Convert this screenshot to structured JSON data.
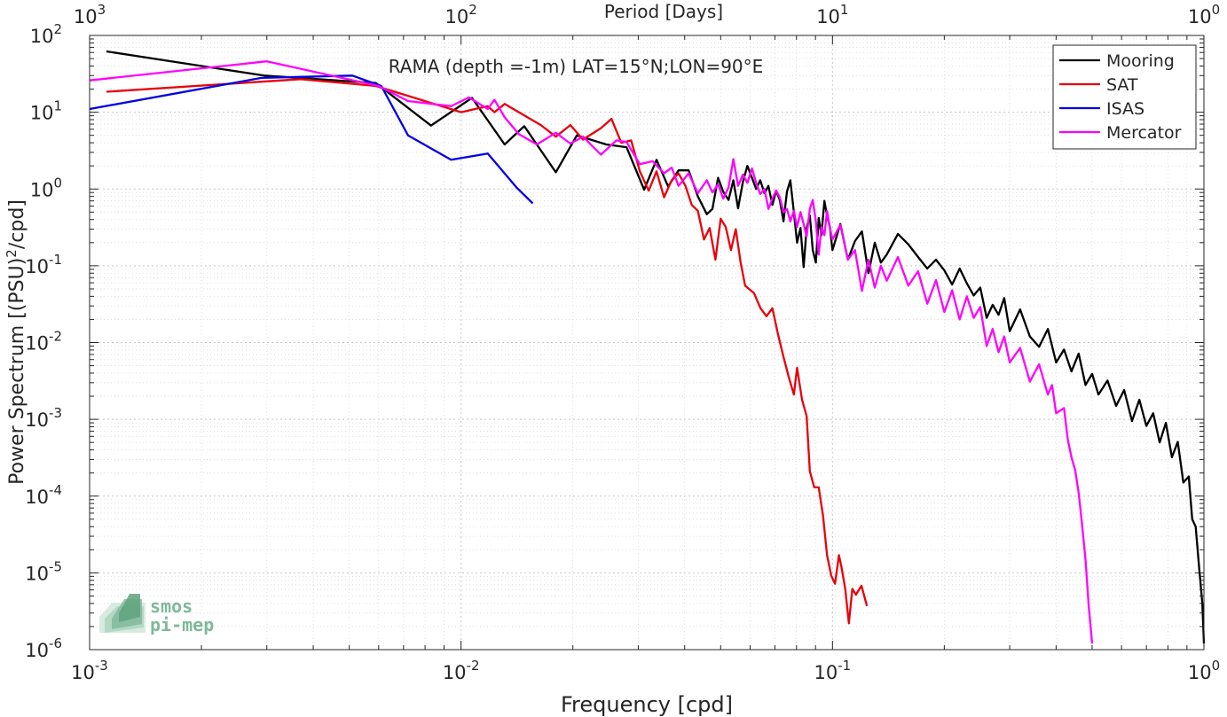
{
  "chart_data": {
    "type": "line",
    "title": "RAMA (depth =-1m) LAT=15°N;LON=90°E",
    "xlabel": "Frequency [cpd]",
    "ylabel_main": "Power Spectrum [(PSU)",
    "ylabel_sup": "2",
    "ylabel_end": "/cpd]",
    "top_axis_label": "Period [Days]",
    "x_scale": "log",
    "y_scale": "log",
    "xlim": [
      0.001,
      1
    ],
    "ylim": [
      1e-06,
      100
    ],
    "grid": true,
    "minor_grid": true,
    "legend_position": "top-right",
    "x_ticks": [
      {
        "base": "10",
        "exp": "-3",
        "value": 0.001
      },
      {
        "base": "10",
        "exp": "-2",
        "value": 0.01
      },
      {
        "base": "10",
        "exp": "-1",
        "value": 0.1
      },
      {
        "base": "10",
        "exp": "0",
        "value": 1
      }
    ],
    "top_ticks": [
      {
        "base": "10",
        "exp": "3",
        "value": 0.001
      },
      {
        "base": "10",
        "exp": "2",
        "value": 0.01
      },
      {
        "base": "10",
        "exp": "1",
        "value": 0.1
      },
      {
        "base": "10",
        "exp": "0",
        "value": 1
      }
    ],
    "y_ticks": [
      {
        "base": "10",
        "exp": "2",
        "value": 100
      },
      {
        "base": "10",
        "exp": "1",
        "value": 10
      },
      {
        "base": "10",
        "exp": "0",
        "value": 1
      },
      {
        "base": "10",
        "exp": "-1",
        "value": 0.1
      },
      {
        "base": "10",
        "exp": "-2",
        "value": 0.01
      },
      {
        "base": "10",
        "exp": "-3",
        "value": 0.001
      },
      {
        "base": "10",
        "exp": "-4",
        "value": 0.0001
      },
      {
        "base": "10",
        "exp": "-5",
        "value": 1e-05
      },
      {
        "base": "10",
        "exp": "-6",
        "value": 1e-06
      }
    ],
    "series": [
      {
        "name": "Mooring",
        "color": "#000000",
        "points": [
          [
            0.00111,
            62
          ],
          [
            0.00295,
            30
          ],
          [
            0.0059,
            24
          ],
          [
            0.0083,
            6.7
          ],
          [
            0.0107,
            15.4
          ],
          [
            0.0131,
            3.8
          ],
          [
            0.0148,
            6.6
          ],
          [
            0.018,
            1.65
          ],
          [
            0.0205,
            5.0
          ],
          [
            0.0246,
            3.8
          ],
          [
            0.0279,
            3.5
          ],
          [
            0.0311,
            0.98
          ],
          [
            0.0336,
            2.4
          ],
          [
            0.0361,
            1.08
          ],
          [
            0.0385,
            1.75
          ],
          [
            0.041,
            1.75
          ],
          [
            0.0434,
            0.8
          ],
          [
            0.0459,
            0.47
          ],
          [
            0.0475,
            0.55
          ],
          [
            0.0492,
            1.4
          ],
          [
            0.0508,
            0.92
          ],
          [
            0.0525,
            0.72
          ],
          [
            0.0541,
            1.3
          ],
          [
            0.0557,
            0.56
          ],
          [
            0.0574,
            1.25
          ],
          [
            0.059,
            2.0
          ],
          [
            0.0607,
            1.4
          ],
          [
            0.0623,
            1.0
          ],
          [
            0.0639,
            1.3
          ],
          [
            0.0656,
            0.88
          ],
          [
            0.0672,
            1.1
          ],
          [
            0.0689,
            0.62
          ],
          [
            0.0705,
            0.95
          ],
          [
            0.0721,
            0.72
          ],
          [
            0.0738,
            0.38
          ],
          [
            0.0754,
            0.92
          ],
          [
            0.077,
            1.3
          ],
          [
            0.0787,
            0.5
          ],
          [
            0.0803,
            0.2
          ],
          [
            0.082,
            0.31
          ],
          [
            0.0836,
            0.096
          ],
          [
            0.0852,
            0.31
          ],
          [
            0.0869,
            0.45
          ],
          [
            0.0885,
            0.16
          ],
          [
            0.0902,
            0.11
          ],
          [
            0.0918,
            0.42
          ],
          [
            0.0934,
            0.25
          ],
          [
            0.0951,
            0.7
          ],
          [
            0.0967,
            0.45
          ],
          [
            0.0984,
            0.32
          ],
          [
            0.1,
            0.16
          ],
          [
            0.105,
            0.35
          ],
          [
            0.11,
            0.12
          ],
          [
            0.115,
            0.21
          ],
          [
            0.12,
            0.28
          ],
          [
            0.125,
            0.08
          ],
          [
            0.13,
            0.2
          ],
          [
            0.135,
            0.11
          ],
          [
            0.14,
            0.14
          ],
          [
            0.15,
            0.26
          ],
          [
            0.16,
            0.19
          ],
          [
            0.17,
            0.13
          ],
          [
            0.18,
            0.092
          ],
          [
            0.19,
            0.12
          ],
          [
            0.2,
            0.087
          ],
          [
            0.21,
            0.057
          ],
          [
            0.22,
            0.092
          ],
          [
            0.23,
            0.059
          ],
          [
            0.24,
            0.041
          ],
          [
            0.25,
            0.052
          ],
          [
            0.26,
            0.021
          ],
          [
            0.27,
            0.031
          ],
          [
            0.28,
            0.023
          ],
          [
            0.29,
            0.038
          ],
          [
            0.3,
            0.014
          ],
          [
            0.32,
            0.027
          ],
          [
            0.34,
            0.012
          ],
          [
            0.36,
            0.0088
          ],
          [
            0.38,
            0.015
          ],
          [
            0.4,
            0.0055
          ],
          [
            0.42,
            0.0081
          ],
          [
            0.44,
            0.0042
          ],
          [
            0.46,
            0.0072
          ],
          [
            0.48,
            0.0028
          ],
          [
            0.5,
            0.0039
          ],
          [
            0.52,
            0.0021
          ],
          [
            0.55,
            0.0032
          ],
          [
            0.58,
            0.0015
          ],
          [
            0.61,
            0.0024
          ],
          [
            0.64,
            0.00095
          ],
          [
            0.67,
            0.0018
          ],
          [
            0.7,
            0.00082
          ],
          [
            0.73,
            0.0012
          ],
          [
            0.76,
            0.0005
          ],
          [
            0.79,
            0.0009
          ],
          [
            0.82,
            0.00032
          ],
          [
            0.85,
            0.00051
          ],
          [
            0.88,
            0.00015
          ],
          [
            0.91,
            0.00018
          ],
          [
            0.93,
            5e-05
          ],
          [
            0.95,
            4e-05
          ],
          [
            0.97,
            1.2e-05
          ],
          [
            0.99,
            4e-06
          ],
          [
            1.0,
            1.2e-06
          ]
        ]
      },
      {
        "name": "SAT",
        "color": "#e8000b",
        "points": [
          [
            0.00111,
            18.5
          ],
          [
            0.0037,
            27
          ],
          [
            0.0059,
            22
          ],
          [
            0.01,
            10
          ],
          [
            0.0118,
            12
          ],
          [
            0.0123,
            10
          ],
          [
            0.0131,
            12.8
          ],
          [
            0.0164,
            6.8
          ],
          [
            0.018,
            4.8
          ],
          [
            0.0197,
            6.8
          ],
          [
            0.0213,
            4.4
          ],
          [
            0.0238,
            6.2
          ],
          [
            0.0254,
            8.2
          ],
          [
            0.027,
            4.0
          ],
          [
            0.0287,
            4.3
          ],
          [
            0.0303,
            1.7
          ],
          [
            0.032,
            0.95
          ],
          [
            0.0336,
            1.7
          ],
          [
            0.0352,
            0.78
          ],
          [
            0.0369,
            1.3
          ],
          [
            0.0385,
            1.6
          ],
          [
            0.0402,
            1.1
          ],
          [
            0.0418,
            0.62
          ],
          [
            0.0434,
            0.52
          ],
          [
            0.0451,
            0.22
          ],
          [
            0.0467,
            0.31
          ],
          [
            0.0484,
            0.12
          ],
          [
            0.05,
            0.41
          ],
          [
            0.0516,
            0.32
          ],
          [
            0.0533,
            0.16
          ],
          [
            0.0549,
            0.3
          ],
          [
            0.0566,
            0.11
          ],
          [
            0.0582,
            0.055
          ],
          [
            0.0615,
            0.044
          ],
          [
            0.064,
            0.028
          ],
          [
            0.0664,
            0.022
          ],
          [
            0.0689,
            0.028
          ],
          [
            0.0713,
            0.013
          ],
          [
            0.0738,
            0.0065
          ],
          [
            0.0762,
            0.0036
          ],
          [
            0.0787,
            0.0021
          ],
          [
            0.0803,
            0.0047
          ],
          [
            0.0828,
            0.0018
          ],
          [
            0.0852,
            0.0011
          ],
          [
            0.0869,
            0.00021
          ],
          [
            0.0893,
            0.00013
          ],
          [
            0.0918,
            0.00013
          ],
          [
            0.0943,
            5.5e-05
          ],
          [
            0.0967,
            1.7e-05
          ],
          [
            0.0992,
            9.2e-06
          ],
          [
            0.1016,
            7.2e-06
          ],
          [
            0.1041,
            1.7e-05
          ],
          [
            0.1057,
            1.2e-05
          ],
          [
            0.1082,
            6.2e-06
          ],
          [
            0.1107,
            2.2e-06
          ],
          [
            0.1131,
            6.2e-06
          ],
          [
            0.1156,
            5.2e-06
          ],
          [
            0.1197,
            6.8e-06
          ],
          [
            0.1238,
            3.7e-06
          ]
        ]
      },
      {
        "name": "ISAS",
        "color": "#0000e6",
        "points": [
          [
            0.001,
            11
          ],
          [
            0.0029,
            28
          ],
          [
            0.0051,
            30
          ],
          [
            0.0061,
            22
          ],
          [
            0.0072,
            5.0
          ],
          [
            0.0094,
            2.4
          ],
          [
            0.0118,
            2.9
          ],
          [
            0.0141,
            1.05
          ],
          [
            0.0156,
            0.65
          ]
        ]
      },
      {
        "name": "Mercator",
        "color": "#ff00ff",
        "points": [
          [
            0.001,
            26
          ],
          [
            0.003,
            46
          ],
          [
            0.006,
            22
          ],
          [
            0.0072,
            14
          ],
          [
            0.0094,
            12
          ],
          [
            0.0105,
            15.6
          ],
          [
            0.0118,
            11
          ],
          [
            0.0123,
            14.5
          ],
          [
            0.0131,
            8.6
          ],
          [
            0.0143,
            5.2
          ],
          [
            0.016,
            3.8
          ],
          [
            0.018,
            5.4
          ],
          [
            0.0197,
            3.9
          ],
          [
            0.0213,
            4.8
          ],
          [
            0.0238,
            2.8
          ],
          [
            0.0262,
            4.3
          ],
          [
            0.0279,
            4.1
          ],
          [
            0.0303,
            2.1
          ],
          [
            0.0328,
            2.3
          ],
          [
            0.0352,
            1.6
          ],
          [
            0.0369,
            1.9
          ],
          [
            0.0385,
            1.1
          ],
          [
            0.041,
            1.6
          ],
          [
            0.0434,
            0.88
          ],
          [
            0.0459,
            1.3
          ],
          [
            0.0475,
            0.9
          ],
          [
            0.0492,
            1.15
          ],
          [
            0.0508,
            0.75
          ],
          [
            0.0525,
            1.05
          ],
          [
            0.0541,
            2.45
          ],
          [
            0.0557,
            1.1
          ],
          [
            0.0574,
            1.55
          ],
          [
            0.059,
            1.2
          ],
          [
            0.0607,
            1.85
          ],
          [
            0.0623,
            1.2
          ],
          [
            0.0639,
            0.86
          ],
          [
            0.0656,
            1.0
          ],
          [
            0.0672,
            0.55
          ],
          [
            0.0689,
            0.75
          ],
          [
            0.0705,
            0.96
          ],
          [
            0.0721,
            0.78
          ],
          [
            0.0738,
            0.5
          ],
          [
            0.0754,
            0.55
          ],
          [
            0.077,
            0.38
          ],
          [
            0.0787,
            0.52
          ],
          [
            0.0803,
            0.32
          ],
          [
            0.082,
            0.5
          ],
          [
            0.0836,
            0.35
          ],
          [
            0.0852,
            0.24
          ],
          [
            0.0869,
            0.55
          ],
          [
            0.0885,
            0.72
          ],
          [
            0.0902,
            0.38
          ],
          [
            0.0918,
            0.14
          ],
          [
            0.0934,
            0.32
          ],
          [
            0.0951,
            0.25
          ],
          [
            0.0967,
            0.52
          ],
          [
            0.0984,
            0.31
          ],
          [
            0.1,
            0.22
          ],
          [
            0.105,
            0.34
          ],
          [
            0.11,
            0.12
          ],
          [
            0.115,
            0.16
          ],
          [
            0.12,
            0.047
          ],
          [
            0.125,
            0.12
          ],
          [
            0.13,
            0.052
          ],
          [
            0.135,
            0.1
          ],
          [
            0.14,
            0.064
          ],
          [
            0.15,
            0.13
          ],
          [
            0.16,
            0.055
          ],
          [
            0.17,
            0.085
          ],
          [
            0.18,
            0.032
          ],
          [
            0.19,
            0.065
          ],
          [
            0.2,
            0.025
          ],
          [
            0.21,
            0.048
          ],
          [
            0.22,
            0.02
          ],
          [
            0.23,
            0.04
          ],
          [
            0.24,
            0.021
          ],
          [
            0.25,
            0.029
          ],
          [
            0.26,
            0.009
          ],
          [
            0.27,
            0.015
          ],
          [
            0.28,
            0.0075
          ],
          [
            0.29,
            0.012
          ],
          [
            0.3,
            0.0055
          ],
          [
            0.32,
            0.0085
          ],
          [
            0.34,
            0.0031
          ],
          [
            0.36,
            0.0052
          ],
          [
            0.38,
            0.0021
          ],
          [
            0.39,
            0.0028
          ],
          [
            0.4,
            0.0012
          ],
          [
            0.42,
            0.0014
          ],
          [
            0.43,
            0.00055
          ],
          [
            0.44,
            0.00032
          ],
          [
            0.45,
            0.00022
          ],
          [
            0.46,
            0.00011
          ],
          [
            0.47,
            4.2e-05
          ],
          [
            0.48,
            1.5e-05
          ],
          [
            0.49,
            3.5e-06
          ],
          [
            0.5,
            1.2e-06
          ]
        ]
      }
    ]
  },
  "watermark": {
    "line1": "smos",
    "line2": "pi-mep",
    "color": "#7fb89a"
  }
}
